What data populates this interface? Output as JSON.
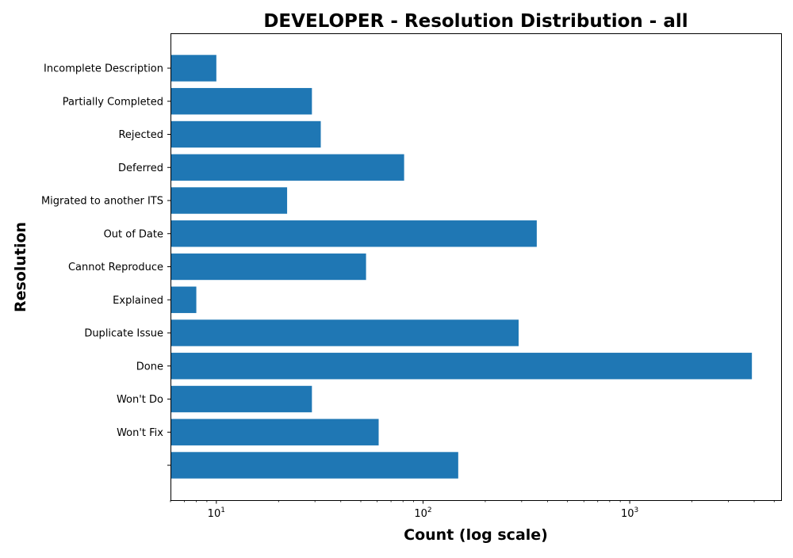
{
  "chart_data": {
    "type": "bar",
    "orientation": "horizontal",
    "title": "DEVELOPER - Resolution Distribution - all",
    "xlabel": "Count (log scale)",
    "ylabel": "Resolution",
    "x_scale": "log",
    "xlim": [
      6,
      5400
    ],
    "x_ticks": [
      {
        "value": 10,
        "base": "10",
        "exp": "1"
      },
      {
        "value": 100,
        "base": "10",
        "exp": "2"
      },
      {
        "value": 1000,
        "base": "10",
        "exp": "3"
      }
    ],
    "grid": false,
    "color": "#1f77b4",
    "categories": [
      "",
      "Won't Fix",
      "Won't Do",
      "Done",
      "Duplicate Issue",
      "Explained",
      "Cannot Reproduce",
      "Out of Date",
      "Migrated to another ITS",
      "Deferred",
      "Rejected",
      "Partially Completed",
      "Incomplete Description"
    ],
    "values": [
      148,
      61,
      29,
      3900,
      290,
      8,
      53,
      355,
      22,
      81,
      32,
      29,
      10
    ]
  }
}
